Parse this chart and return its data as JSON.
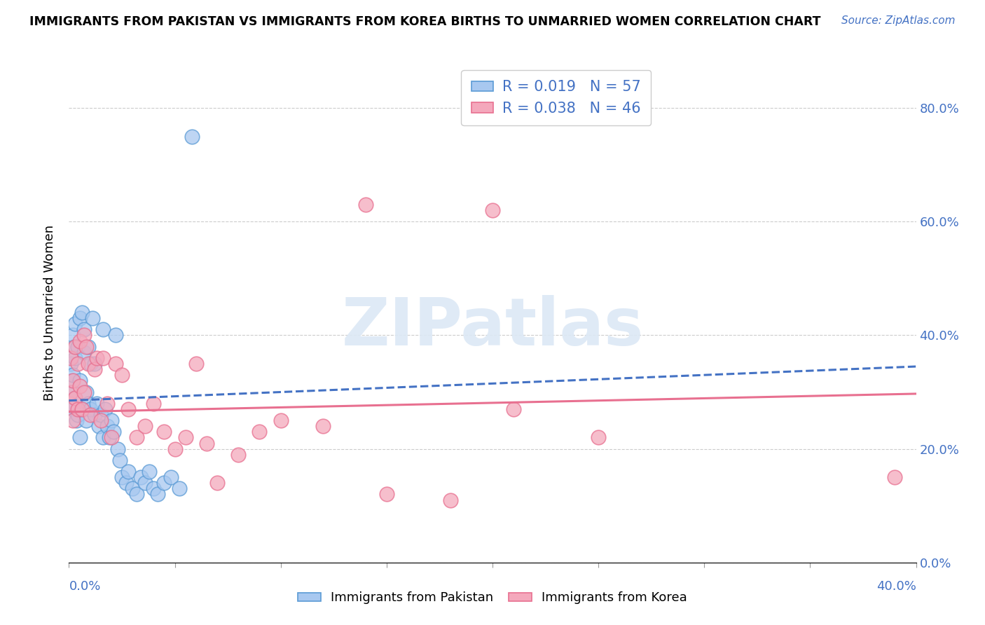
{
  "title": "IMMIGRANTS FROM PAKISTAN VS IMMIGRANTS FROM KOREA BIRTHS TO UNMARRIED WOMEN CORRELATION CHART",
  "source": "Source: ZipAtlas.com",
  "ylabel": "Births to Unmarried Women",
  "xmin": 0.0,
  "xmax": 0.4,
  "ymin": 0.0,
  "ymax": 0.88,
  "yticks": [
    0.0,
    0.2,
    0.4,
    0.6,
    0.8
  ],
  "pakistan_color": "#A8C8F0",
  "korea_color": "#F4A8BC",
  "pakistan_edge": "#5B9BD5",
  "korea_edge": "#E87090",
  "trendline_pakistan_color": "#4472C4",
  "trendline_korea_color": "#E87090",
  "R_pakistan": 0.019,
  "N_pakistan": 57,
  "R_korea": 0.038,
  "N_korea": 46,
  "watermark": "ZIPatlas",
  "pak_x": [
    0.0005,
    0.001,
    0.001,
    0.0015,
    0.002,
    0.002,
    0.002,
    0.0025,
    0.003,
    0.003,
    0.003,
    0.0035,
    0.004,
    0.004,
    0.005,
    0.005,
    0.005,
    0.006,
    0.006,
    0.007,
    0.007,
    0.008,
    0.008,
    0.009,
    0.009,
    0.01,
    0.01,
    0.011,
    0.012,
    0.012,
    0.013,
    0.014,
    0.015,
    0.016,
    0.016,
    0.017,
    0.018,
    0.019,
    0.02,
    0.021,
    0.022,
    0.023,
    0.024,
    0.025,
    0.027,
    0.028,
    0.03,
    0.032,
    0.034,
    0.036,
    0.038,
    0.04,
    0.042,
    0.045,
    0.048,
    0.052,
    0.058
  ],
  "pak_y": [
    0.3,
    0.35,
    0.28,
    0.32,
    0.27,
    0.33,
    0.4,
    0.38,
    0.29,
    0.36,
    0.42,
    0.25,
    0.38,
    0.26,
    0.32,
    0.22,
    0.43,
    0.27,
    0.44,
    0.41,
    0.37,
    0.3,
    0.25,
    0.38,
    0.28,
    0.35,
    0.27,
    0.43,
    0.26,
    0.35,
    0.28,
    0.24,
    0.26,
    0.22,
    0.41,
    0.27,
    0.24,
    0.22,
    0.25,
    0.23,
    0.4,
    0.2,
    0.18,
    0.15,
    0.14,
    0.16,
    0.13,
    0.12,
    0.15,
    0.14,
    0.16,
    0.13,
    0.12,
    0.14,
    0.15,
    0.13,
    0.75
  ],
  "kor_x": [
    0.0005,
    0.001,
    0.001,
    0.002,
    0.002,
    0.003,
    0.003,
    0.004,
    0.004,
    0.005,
    0.005,
    0.006,
    0.007,
    0.007,
    0.008,
    0.009,
    0.01,
    0.012,
    0.013,
    0.015,
    0.016,
    0.018,
    0.02,
    0.022,
    0.025,
    0.028,
    0.032,
    0.036,
    0.04,
    0.045,
    0.05,
    0.055,
    0.06,
    0.065,
    0.07,
    0.08,
    0.09,
    0.1,
    0.12,
    0.15,
    0.18,
    0.21,
    0.25,
    0.39,
    0.14,
    0.2
  ],
  "kor_y": [
    0.28,
    0.3,
    0.36,
    0.25,
    0.32,
    0.29,
    0.38,
    0.27,
    0.35,
    0.31,
    0.39,
    0.27,
    0.3,
    0.4,
    0.38,
    0.35,
    0.26,
    0.34,
    0.36,
    0.25,
    0.36,
    0.28,
    0.22,
    0.35,
    0.33,
    0.27,
    0.22,
    0.24,
    0.28,
    0.23,
    0.2,
    0.22,
    0.35,
    0.21,
    0.14,
    0.19,
    0.23,
    0.25,
    0.24,
    0.12,
    0.11,
    0.27,
    0.22,
    0.15,
    0.63,
    0.62
  ]
}
